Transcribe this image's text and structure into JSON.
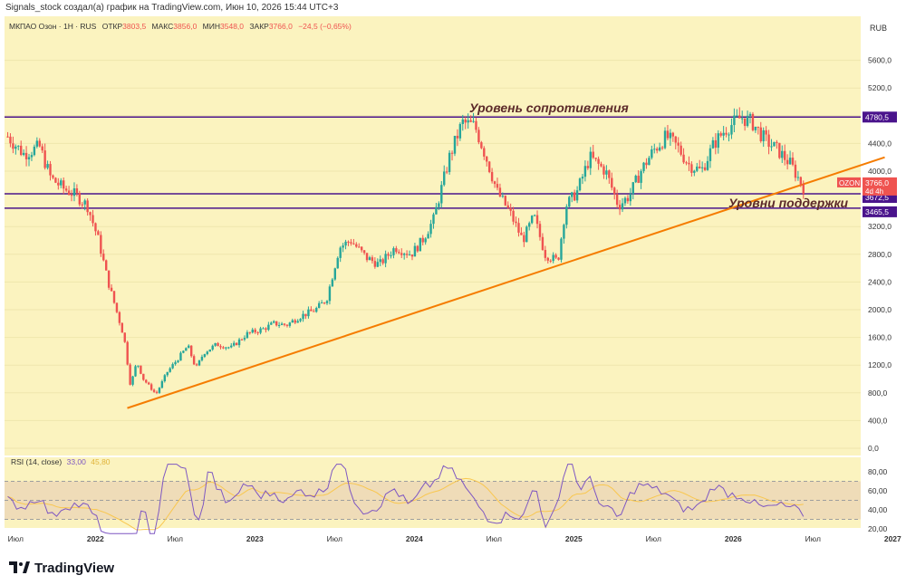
{
  "header": {
    "credit": "Signals_stock создал(а) график на TradingView.com, Июн 10, 2026 15:44 UTC+3"
  },
  "legend": {
    "symbol": "МКПАО Озон · 1Н · RUS",
    "open_label": "ОТКР",
    "open": "3803,5",
    "high_label": "МАКС",
    "high": "3856,0",
    "low_label": "МИН",
    "low": "3548,0",
    "close_label": "ЗАКР",
    "close": "3766,0",
    "change": "−24,5 (−0,65%)"
  },
  "currency": "RUB",
  "annotations": {
    "resistance": "Уровень сопротивления",
    "support": "Уровни поддержки"
  },
  "price_tags": {
    "resistance": "4780,5",
    "support_high": "3672,5",
    "support_low": "3465,5",
    "ticker": "OZON",
    "last": "3766,0",
    "countdown": "4d 4h"
  },
  "rsi_label": {
    "title": "RSI (14, close)",
    "value": "33,00",
    "ma": "45,80"
  },
  "logo": {
    "text": "TradingView"
  },
  "colors": {
    "bg": "#fbf3bf",
    "up": "#26a69a",
    "down": "#ef5350",
    "level": "#4a148c",
    "trend": "#f57c00",
    "rsi": "#7e57c2",
    "rsi_ma": "#f9c74f"
  },
  "chart_data": {
    "type": "candlestick",
    "y_ticks": [
      0,
      400,
      800,
      1200,
      1600,
      2000,
      2400,
      2800,
      3200,
      4000,
      4400,
      4800,
      5200,
      5600
    ],
    "y_tick_labels": [
      "0,0",
      "400,0",
      "800,0",
      "1200,0",
      "1600,0",
      "2000,0",
      "2400,0",
      "2800,0",
      "3200,0",
      "4000,0",
      "4400,0",
      "4800,0",
      "5200,0",
      "5600,0"
    ],
    "ylim": [
      0,
      5800
    ],
    "x_ticks": [
      "Июл",
      "2022",
      "Июл",
      "2023",
      "Июл",
      "2024",
      "Июл",
      "2025",
      "Июл",
      "2026",
      "Июл",
      "2027"
    ],
    "price_path": [
      [
        2021.45,
        4500
      ],
      [
        2021.55,
        4250
      ],
      [
        2021.65,
        4350
      ],
      [
        2021.72,
        3900
      ],
      [
        2021.8,
        3750
      ],
      [
        2021.88,
        3650
      ],
      [
        2021.95,
        3500
      ],
      [
        2022.02,
        3000
      ],
      [
        2022.08,
        2400
      ],
      [
        2022.13,
        2000
      ],
      [
        2022.18,
        1600
      ],
      [
        2022.22,
        900
      ],
      [
        2022.26,
        1250
      ],
      [
        2022.3,
        1000
      ],
      [
        2022.38,
        780
      ],
      [
        2022.45,
        1100
      ],
      [
        2022.52,
        1300
      ],
      [
        2022.58,
        1480
      ],
      [
        2022.63,
        1150
      ],
      [
        2022.68,
        1380
      ],
      [
        2022.76,
        1500
      ],
      [
        2022.85,
        1450
      ],
      [
        2022.95,
        1650
      ],
      [
        2023.05,
        1720
      ],
      [
        2023.12,
        1800
      ],
      [
        2023.2,
        1780
      ],
      [
        2023.28,
        1900
      ],
      [
        2023.38,
        2000
      ],
      [
        2023.45,
        2150
      ],
      [
        2023.53,
        2900
      ],
      [
        2023.6,
        3000
      ],
      [
        2023.7,
        2750
      ],
      [
        2023.78,
        2650
      ],
      [
        2023.88,
        2900
      ],
      [
        2023.98,
        2800
      ],
      [
        2024.05,
        3000
      ],
      [
        2024.12,
        3300
      ],
      [
        2024.22,
        4200
      ],
      [
        2024.3,
        4700
      ],
      [
        2024.38,
        4650
      ],
      [
        2024.45,
        4200
      ],
      [
        2024.52,
        3700
      ],
      [
        2024.6,
        3400
      ],
      [
        2024.68,
        3000
      ],
      [
        2024.75,
        3350
      ],
      [
        2024.82,
        2800
      ],
      [
        2024.9,
        2700
      ],
      [
        2024.95,
        3500
      ],
      [
        2025.02,
        3700
      ],
      [
        2025.1,
        4200
      ],
      [
        2025.2,
        4000
      ],
      [
        2025.28,
        3500
      ],
      [
        2025.35,
        3650
      ],
      [
        2025.42,
        4000
      ],
      [
        2025.5,
        4300
      ],
      [
        2025.58,
        4500
      ],
      [
        2025.65,
        4350
      ],
      [
        2025.72,
        4100
      ],
      [
        2025.8,
        4000
      ],
      [
        2025.88,
        4400
      ],
      [
        2025.95,
        4600
      ],
      [
        2026.05,
        4780
      ],
      [
        2026.12,
        4700
      ],
      [
        2026.2,
        4450
      ],
      [
        2026.28,
        4300
      ],
      [
        2026.36,
        4100
      ],
      [
        2026.44,
        3766
      ]
    ],
    "resistance": 4780.5,
    "support_levels": [
      3672.5,
      3465.5
    ],
    "trendline": [
      [
        2022.2,
        580
      ],
      [
        2026.95,
        4200
      ]
    ],
    "rsi": {
      "y_ticks": [
        20,
        40,
        60,
        80
      ],
      "y_tick_labels": [
        "20,00",
        "40,00",
        "60,00",
        "80,00"
      ],
      "bands": [
        30,
        50,
        70
      ],
      "last": 33.0,
      "ma_last": 45.8
    }
  }
}
